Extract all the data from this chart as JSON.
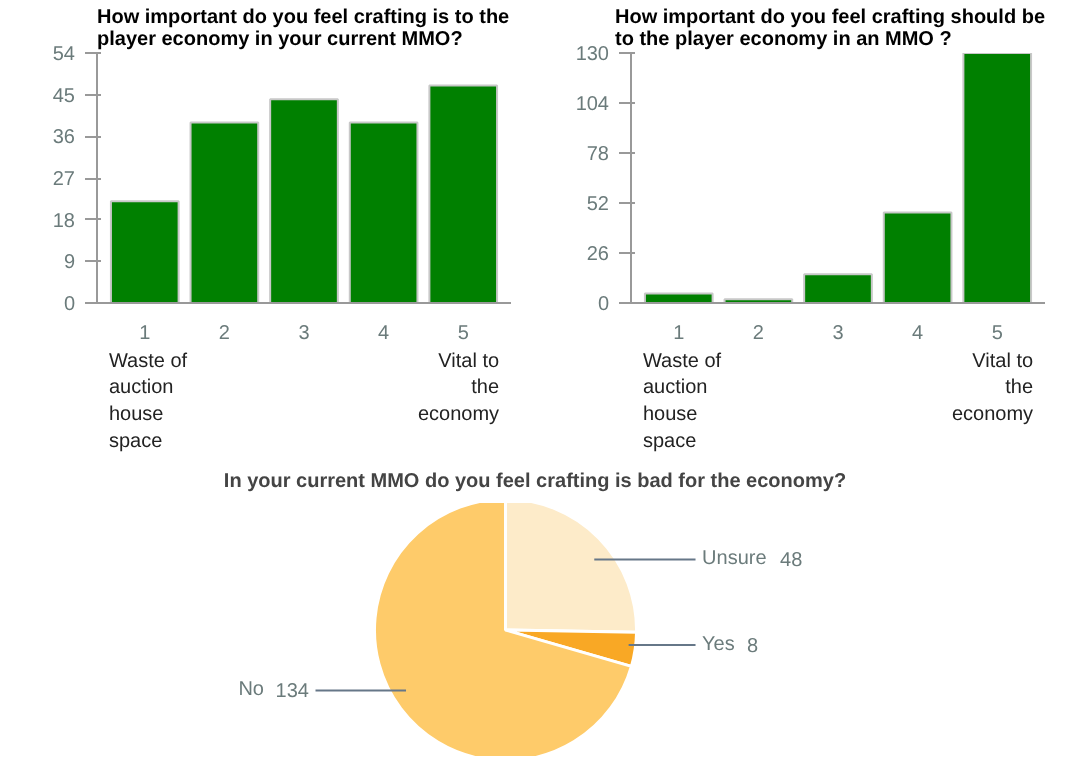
{
  "chart_data": [
    {
      "type": "bar",
      "title": "How important do you feel crafting is to the player economy in your current MMO?",
      "categories": [
        "1",
        "2",
        "3",
        "4",
        "5"
      ],
      "values": [
        22,
        39,
        44,
        39,
        47
      ],
      "color": "#008000",
      "ylim": [
        0,
        54
      ],
      "yticks": [
        0,
        9,
        18,
        27,
        36,
        45,
        54
      ],
      "grid": false,
      "annotations": [
        "Waste of auction house space",
        "Vital to the economy"
      ]
    },
    {
      "type": "bar",
      "title": "How important do you feel crafting should be to the player economy in an MMO ?",
      "categories": [
        "1",
        "2",
        "3",
        "4",
        "5"
      ],
      "values": [
        5,
        2,
        15,
        47,
        130
      ],
      "color": "#008000",
      "ylim": [
        0,
        130
      ],
      "yticks": [
        0,
        26,
        52,
        78,
        104,
        130
      ],
      "grid": false,
      "annotations": [
        "Waste of auction house space",
        "Vital to the economy"
      ]
    },
    {
      "type": "pie",
      "title": "In your current MMO do you feel crafting is bad for the economy?",
      "categories": [
        "Unsure",
        "Yes",
        "No"
      ],
      "values": [
        48,
        8,
        134
      ],
      "colors": [
        "#fdebc9",
        "#f9a825",
        "#fecb6a"
      ],
      "data_labels": true
    }
  ]
}
